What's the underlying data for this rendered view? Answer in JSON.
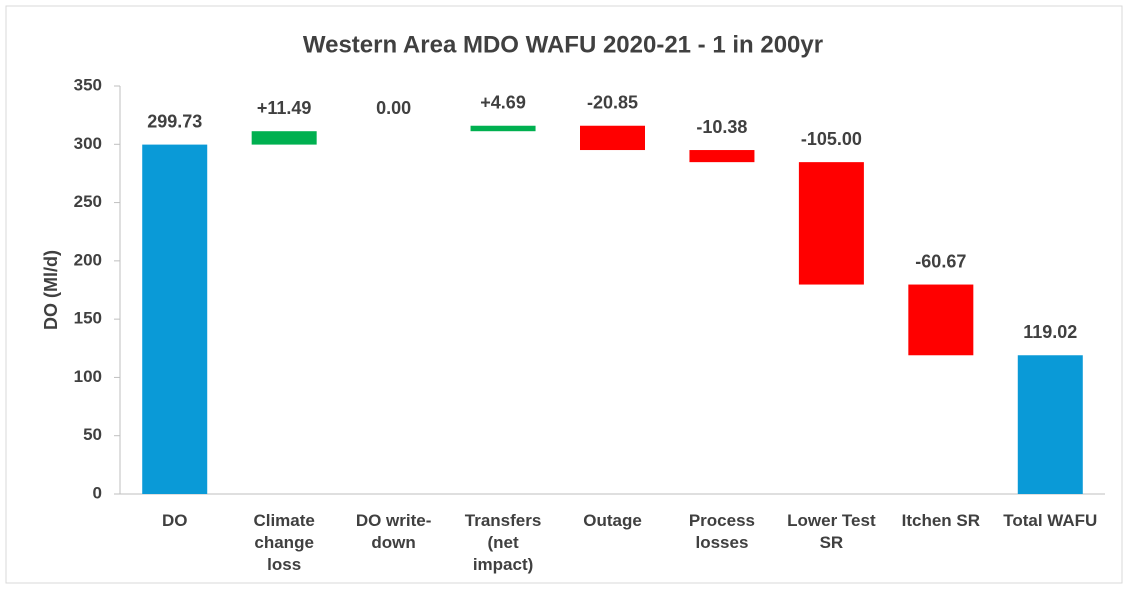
{
  "chart_data": {
    "type": "waterfall",
    "title": "Western Area MDO WAFU 2020-21 - 1 in 200yr",
    "y_label": "DO (Ml/d)",
    "categories": [
      "DO",
      "Climate change loss",
      "DO write-down",
      "Transfers (net impact)",
      "Outage",
      "Process losses",
      "Lower Test SR",
      "Itchen SR",
      "Total WAFU"
    ],
    "values": [
      299.73,
      11.49,
      0.0,
      4.69,
      -20.85,
      -10.38,
      -105.0,
      -60.67,
      119.02
    ],
    "value_labels": [
      "299.73",
      "+11.49",
      "0.00",
      "+4.69",
      "-20.85",
      "-10.38",
      "-105.00",
      "-60.67",
      "119.02"
    ],
    "measures": [
      "absolute",
      "relative",
      "relative",
      "relative",
      "relative",
      "relative",
      "relative",
      "relative",
      "absolute"
    ],
    "colors": {
      "total": "#0a9ad7",
      "increase": "#00b050",
      "decrease": "#ff0000"
    },
    "ylim": [
      0,
      350
    ],
    "yticks": [
      0,
      50,
      100,
      150,
      200,
      250,
      300,
      350
    ]
  }
}
